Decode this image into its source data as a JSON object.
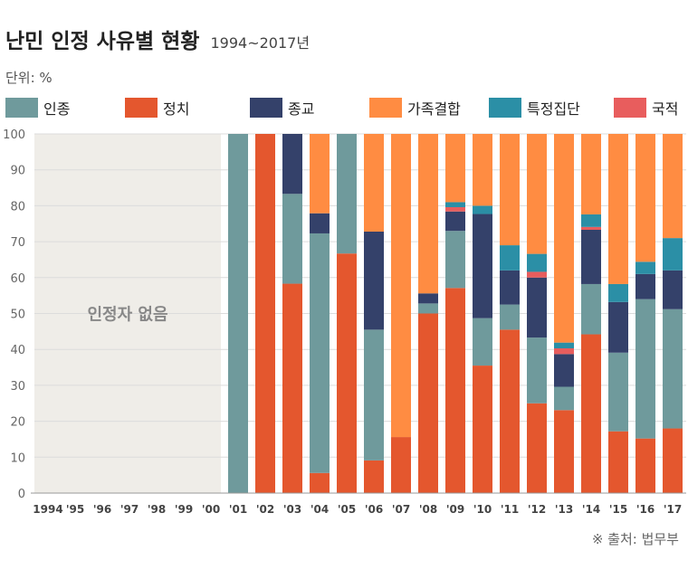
{
  "header": {
    "title": "난민 인정 사유별 현황",
    "subtitle": "1994~2017년",
    "unit": "단위: %"
  },
  "source": "※ 출처: 법무부",
  "colors": {
    "인종": "#6f9a9c",
    "정치": "#e4572e",
    "종교": "#34416a",
    "가족결합": "#ff8c42",
    "특정집단": "#2b8fa6",
    "국적": "#e85d5d",
    "none_region": "#efede8"
  },
  "chart_data": {
    "type": "bar",
    "stacked": true,
    "ylim": [
      0,
      100
    ],
    "yticks": [
      0,
      10,
      20,
      30,
      40,
      50,
      60,
      70,
      80,
      90,
      100
    ],
    "grid": true,
    "legend_position": "top",
    "categories": [
      "1994",
      "'95",
      "'96",
      "'97",
      "'98",
      "'99",
      "'00",
      "'01",
      "'02",
      "'03",
      "'04",
      "'05",
      "'06",
      "'07",
      "'08",
      "'09",
      "'10",
      "'11",
      "'12",
      "'13",
      "'14",
      "'15",
      "'16",
      "'17"
    ],
    "no_recognition_label": "인정자 없음",
    "no_recognition_categories": [
      "1994",
      "'95",
      "'96",
      "'97",
      "'98",
      "'99",
      "'00"
    ],
    "series": [
      {
        "name": "정치",
        "values": [
          0,
          0,
          0,
          0,
          0,
          0,
          0,
          0,
          100,
          58.3,
          5.6,
          66.7,
          9.1,
          15.6,
          50.0,
          57.1,
          35.5,
          45.5,
          25.0,
          23.1,
          44.2,
          17.2,
          15.2,
          18.0
        ]
      },
      {
        "name": "인종",
        "values": [
          0,
          0,
          0,
          0,
          0,
          0,
          0,
          100,
          0,
          25.0,
          66.7,
          33.3,
          36.4,
          0,
          2.8,
          15.9,
          13.2,
          7.0,
          18.3,
          6.5,
          14.0,
          21.9,
          38.8,
          33.2
        ]
      },
      {
        "name": "종교",
        "values": [
          0,
          0,
          0,
          0,
          0,
          0,
          0,
          0,
          0,
          16.7,
          5.6,
          0,
          27.3,
          0,
          2.8,
          5.4,
          29.0,
          9.5,
          16.7,
          9.1,
          15.1,
          14.1,
          7.0,
          10.8
        ]
      },
      {
        "name": "국적",
        "values": [
          0,
          0,
          0,
          0,
          0,
          0,
          0,
          0,
          0,
          0,
          0,
          0,
          0,
          0,
          0,
          1.2,
          0,
          0,
          1.6,
          1.6,
          0.8,
          0,
          0,
          0
        ]
      },
      {
        "name": "특정집단",
        "values": [
          0,
          0,
          0,
          0,
          0,
          0,
          0,
          0,
          0,
          0,
          0,
          0,
          0,
          0,
          0,
          1.4,
          2.3,
          7.0,
          5.0,
          1.6,
          3.5,
          5.0,
          3.4,
          9.0
        ]
      },
      {
        "name": "가족결합",
        "values": [
          0,
          0,
          0,
          0,
          0,
          0,
          0,
          0,
          0,
          0,
          22.1,
          0,
          27.2,
          84.4,
          44.4,
          19.0,
          20.0,
          31.0,
          33.4,
          58.1,
          22.4,
          41.8,
          35.6,
          29.0
        ]
      }
    ]
  },
  "legend_order": [
    "인종",
    "정치",
    "종교",
    "가족결합",
    "특정집단",
    "국적"
  ]
}
